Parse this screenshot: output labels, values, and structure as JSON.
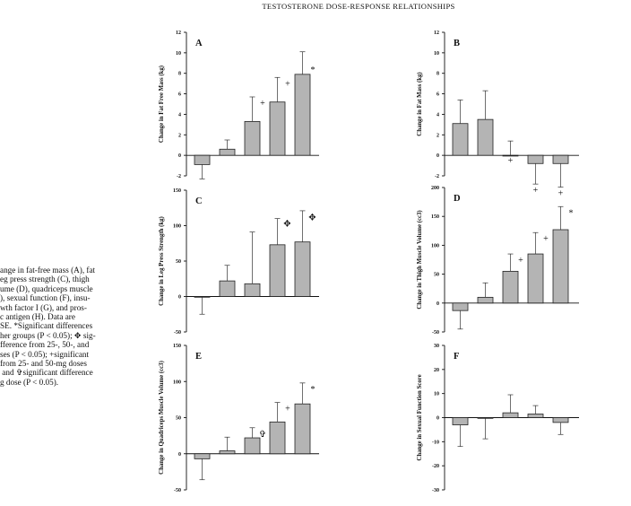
{
  "header": "TESTOSTERONE DOSE-RESPONSE RELATIONSHIPS",
  "caption": "ange in fat-free mass (A), fat\neg press strength (C), thigh\nume (D), quadriceps muscle\n), sexual function (F), insu-\nwth factor I (G), and pros-\nc antigen (H). Data are\nSE. *Significant differences\nher groups (P < 0.05); ✥ sig-\nfference from 25-, 50-, and\nses (P < 0.05); +significant\nfrom 25- and 50-mg doses\n and ✞significant difference\ng dose (P < 0.05).",
  "chart_data": [
    {
      "panel": "A",
      "type": "bar",
      "ylabel": "Change in Fat Free Mass (kg)",
      "ylim": [
        -2,
        12
      ],
      "yticks": [
        -2,
        0,
        2,
        4,
        6,
        8,
        10,
        12
      ],
      "values": [
        -0.9,
        0.6,
        3.3,
        5.2,
        7.9
      ],
      "errors": [
        1.4,
        0.9,
        2.4,
        2.4,
        2.2
      ],
      "markers": [
        "",
        "",
        "+",
        "+",
        "*"
      ]
    },
    {
      "panel": "B",
      "type": "bar",
      "ylabel": "Change in Fat Mass (kg)",
      "ylim": [
        -2,
        12
      ],
      "yticks": [
        -2,
        0,
        2,
        4,
        6,
        8,
        10,
        12
      ],
      "values": [
        3.1,
        3.5,
        0.0,
        -0.8,
        -0.8
      ],
      "errors": [
        2.3,
        2.8,
        1.4,
        2.0,
        2.3
      ],
      "markers": [
        "",
        "",
        "+",
        "+",
        "+"
      ]
    },
    {
      "panel": "C",
      "type": "bar",
      "ylabel": "Change in Leg Press Strength (kg)",
      "ylim": [
        -50,
        150
      ],
      "yticks": [
        -50,
        0,
        50,
        100,
        150
      ],
      "values": [
        -1,
        22,
        18,
        73,
        77
      ],
      "errors": [
        24,
        22,
        73,
        37,
        44
      ],
      "markers": [
        "",
        "",
        "",
        "✥",
        "✥"
      ]
    },
    {
      "panel": "D",
      "type": "bar",
      "ylabel": "Change in Thigh Muscle Volume (cc3)",
      "ylim": [
        -50,
        200
      ],
      "yticks": [
        -50,
        0,
        50,
        100,
        150,
        200
      ],
      "values": [
        -13,
        10,
        55,
        85,
        127
      ],
      "errors": [
        32,
        25,
        30,
        37,
        40
      ],
      "markers": [
        "",
        "",
        "+",
        "+",
        "*"
      ]
    },
    {
      "panel": "E",
      "type": "bar",
      "ylabel": "Change in Quadriceps Muscle Volume (cc3)",
      "ylim": [
        -50,
        150
      ],
      "yticks": [
        -50,
        0,
        50,
        100,
        150
      ],
      "values": [
        -7,
        4,
        22,
        44,
        69
      ],
      "errors": [
        29,
        19,
        14,
        27,
        29
      ],
      "markers": [
        "",
        "",
        "✞",
        "+",
        "*"
      ]
    },
    {
      "panel": "F",
      "type": "bar",
      "ylabel": "Change in Sexual Function Score",
      "ylim": [
        -30,
        30
      ],
      "yticks": [
        -30,
        -20,
        -10,
        0,
        10,
        20,
        30
      ],
      "values": [
        -3,
        -0.3,
        2,
        1.5,
        -2
      ],
      "errors": [
        9,
        8.5,
        7.5,
        3.5,
        5
      ],
      "markers": [
        "",
        "",
        "",
        "",
        ""
      ]
    }
  ]
}
